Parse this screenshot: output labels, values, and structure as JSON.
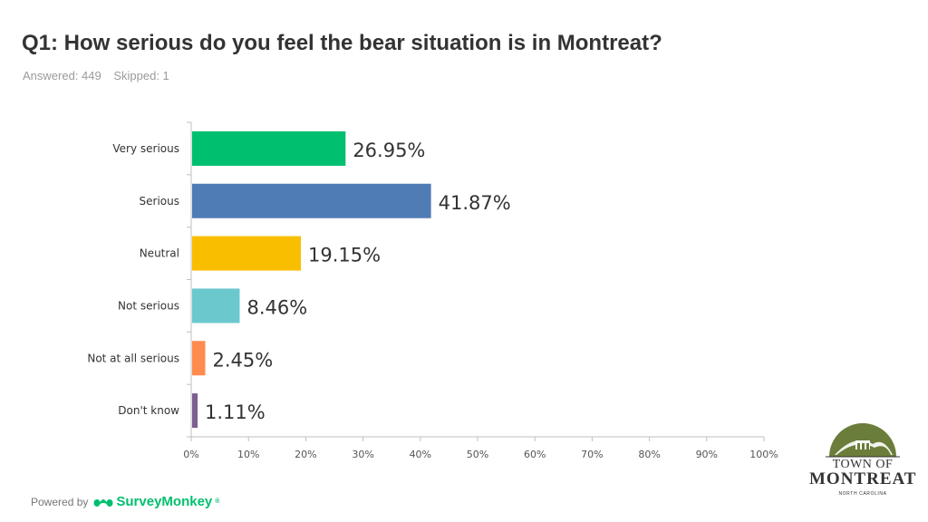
{
  "header": {
    "title": "Q1: How serious do you feel the bear situation is in Montreat?",
    "answered": "Answered: 449",
    "skipped": "Skipped: 1"
  },
  "footer": {
    "powered_by": "Powered by",
    "brand": "SurveyMonkey",
    "brand_mark": "®",
    "brand_icon": "surveymonkey-logo-icon"
  },
  "logo": {
    "line1": "TOWN OF",
    "line2": "MONTREAT",
    "line3": "NORTH CAROLINA"
  },
  "chart_data": {
    "type": "bar",
    "orientation": "horizontal",
    "categories": [
      "Very serious",
      "Serious",
      "Neutral",
      "Not serious",
      "Not at all serious",
      "Don't know"
    ],
    "values": [
      26.95,
      41.87,
      19.15,
      8.46,
      2.45,
      1.11
    ],
    "data_labels": [
      "26.95%",
      "41.87%",
      "19.15%",
      "8.46%",
      "2.45%",
      "1.11%"
    ],
    "colors": [
      "#00bf6f",
      "#507cb6",
      "#f9be00",
      "#6bc8cd",
      "#ff8b4f",
      "#7d5e90"
    ],
    "xlim": [
      0,
      100
    ],
    "x_ticks": [
      "0%",
      "10%",
      "20%",
      "30%",
      "40%",
      "50%",
      "60%",
      "70%",
      "80%",
      "90%",
      "100%"
    ],
    "grid": false,
    "legend": "none"
  }
}
